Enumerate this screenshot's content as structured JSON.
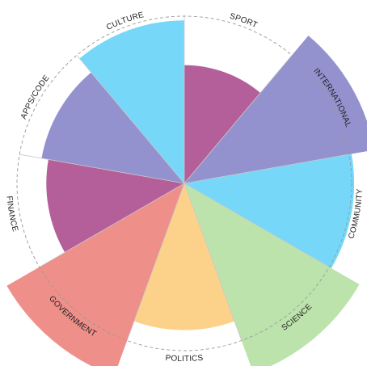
{
  "chart_data": {
    "type": "polar-area",
    "title": "",
    "max_value": 100,
    "segments": [
      {
        "label": "SPORT",
        "value": 50,
        "color": "#b55f9a"
      },
      {
        "label": "INTERNATIONAL",
        "value": 133,
        "color": "#9392cf"
      },
      {
        "label": "COMMUNITY",
        "value": 103,
        "color": "#76d7f8"
      },
      {
        "label": "SCIENCE",
        "value": 146,
        "color": "#bde3ac"
      },
      {
        "label": "POLITICS",
        "value": 77,
        "color": "#fcd28a"
      },
      {
        "label": "GOVERNMENT",
        "value": 150,
        "color": "#ef8f89"
      },
      {
        "label": "FINANCE",
        "value": 68,
        "color": "#b55f9a"
      },
      {
        "label": "APPS/CODE",
        "value": 75,
        "color": "#9392cf"
      },
      {
        "label": "CULTURE",
        "value": 95,
        "color": "#76d7f8"
      }
    ]
  }
}
